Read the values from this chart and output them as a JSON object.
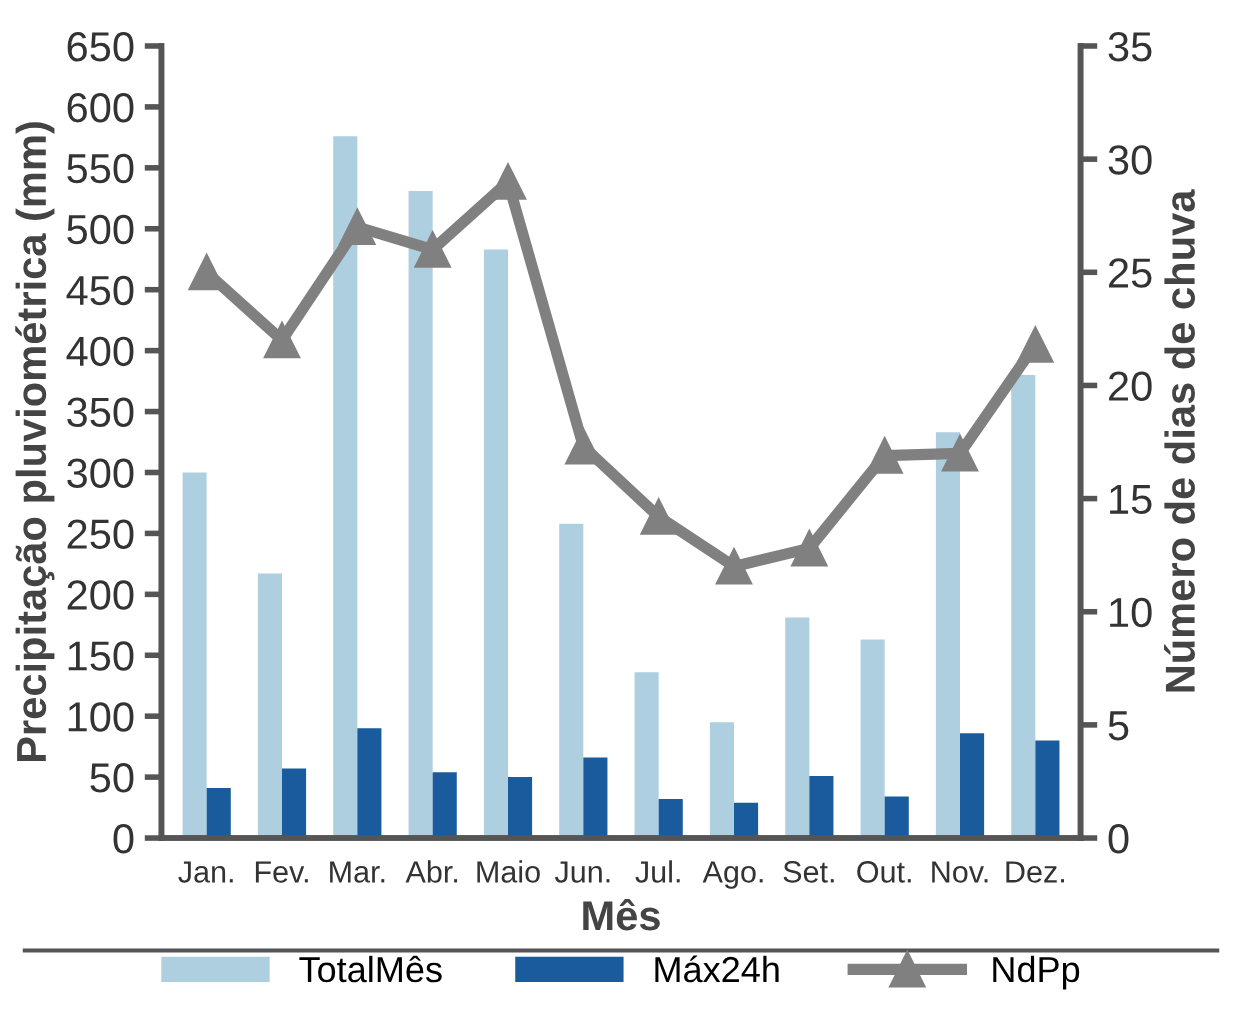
{
  "chart_data": {
    "type": "bar",
    "xlabel": "Mês",
    "ylabel": "Precipitação pluviométrica (mm)",
    "y2label": "Número de dias de chuva",
    "categories": [
      "Jan.",
      "Fev.",
      "Mar.",
      "Abr.",
      "Maio",
      "Jun.",
      "Jul.",
      "Ago.",
      "Set.",
      "Out.",
      "Nov.",
      "Dez."
    ],
    "series": [
      {
        "name": "TotalMês",
        "color": "#aecfe0",
        "values": [
          300,
          217,
          576,
          531,
          483,
          258,
          136,
          95,
          181,
          163,
          333,
          380
        ]
      },
      {
        "name": "Máx24h",
        "color": "#1a5b9e",
        "values": [
          41,
          57,
          90,
          54,
          50,
          66,
          32,
          29,
          51,
          34,
          86,
          80
        ]
      },
      {
        "name": "NdPp",
        "type": "line",
        "axis": "y2",
        "color": "#808080",
        "marker": "triangle",
        "values": [
          25,
          22,
          27,
          26,
          29,
          17.3,
          14.2,
          12,
          12.8,
          16.9,
          17,
          21.8
        ]
      }
    ],
    "ylim": [
      0,
      650
    ],
    "yticks": [
      0,
      50,
      100,
      150,
      200,
      250,
      300,
      350,
      400,
      450,
      500,
      550,
      600,
      650
    ],
    "y2lim": [
      0,
      35
    ],
    "y2ticks": [
      0,
      5,
      10,
      15,
      20,
      25,
      30,
      35
    ],
    "grid": false,
    "legend": "bottom"
  }
}
